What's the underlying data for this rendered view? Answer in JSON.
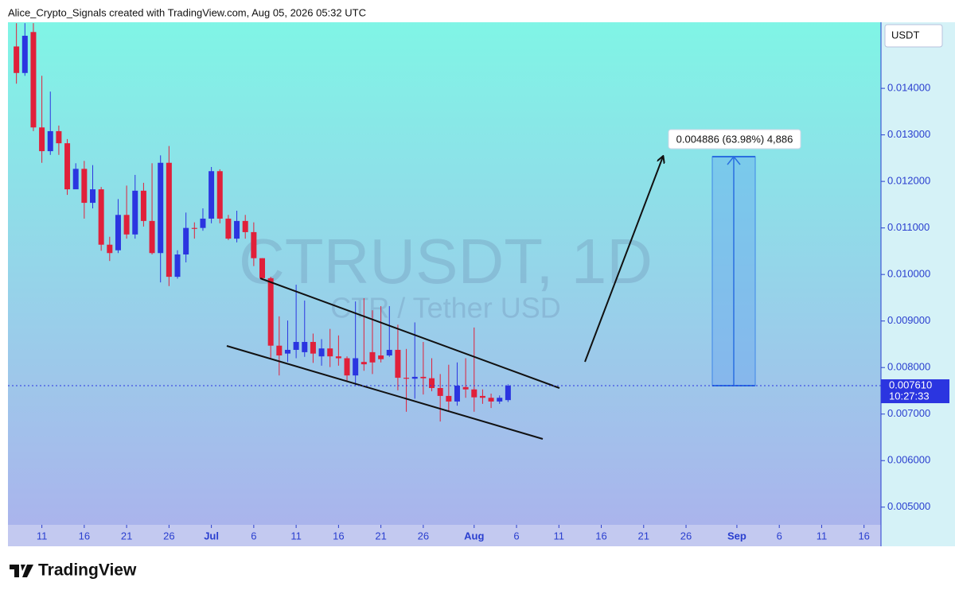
{
  "header": "Alice_Crypto_Signals created with TradingView.com, Aug 05, 2026 05:32 UTC",
  "footer": "TradingView",
  "chart_data": {
    "type": "candlestick",
    "title": "CTRUSDT, 1D",
    "subtitle": "CTR / Tether USD",
    "currency": "USDT",
    "up_color": "#2b35e0",
    "down_color": "#e0203a",
    "x": [
      "2026-06-08",
      "2026-06-09",
      "2026-06-10",
      "2026-06-11",
      "2026-06-12",
      "2026-06-13",
      "2026-06-14",
      "2026-06-15",
      "2026-06-16",
      "2026-06-17",
      "2026-06-18",
      "2026-06-19",
      "2026-06-20",
      "2026-06-21",
      "2026-06-22",
      "2026-06-23",
      "2026-06-24",
      "2026-06-25",
      "2026-06-26",
      "2026-06-27",
      "2026-06-28",
      "2026-06-29",
      "2026-06-30",
      "2026-07-01",
      "2026-07-02",
      "2026-07-03",
      "2026-07-04",
      "2026-07-05",
      "2026-07-06",
      "2026-07-07",
      "2026-07-08",
      "2026-07-09",
      "2026-07-10",
      "2026-07-11",
      "2026-07-12",
      "2026-07-13",
      "2026-07-14",
      "2026-07-15",
      "2026-07-16",
      "2026-07-17",
      "2026-07-18",
      "2026-07-19",
      "2026-07-20",
      "2026-07-21",
      "2026-07-22",
      "2026-07-23",
      "2026-07-24",
      "2026-07-25",
      "2026-07-26",
      "2026-07-27",
      "2026-07-28",
      "2026-07-29",
      "2026-07-30",
      "2026-07-31",
      "2026-08-01",
      "2026-08-02",
      "2026-08-03",
      "2026-08-04",
      "2026-08-05"
    ],
    "open": [
      0.0149,
      0.01433,
      0.01521,
      0.01316,
      0.01265,
      0.01308,
      0.01282,
      0.01183,
      0.01227,
      0.01154,
      0.01183,
      0.01064,
      0.01052,
      0.01128,
      0.01086,
      0.0118,
      0.01115,
      0.01046,
      0.0124,
      0.00995,
      0.01043,
      0.011,
      0.011,
      0.0112,
      0.01222,
      0.0112,
      0.01077,
      0.01115,
      0.01091,
      0.01035,
      0.00992,
      0.00847,
      0.0083,
      0.00838,
      0.00833,
      0.00855,
      0.00824,
      0.00841,
      0.00824,
      0.0082,
      0.00783,
      0.00812,
      0.00833,
      0.00826,
      0.00826,
      0.00838,
      0.00778,
      0.00776,
      0.0078,
      0.00777,
      0.00756,
      0.00739,
      0.00727,
      0.00758,
      0.00753,
      0.00739,
      0.00735,
      0.00727,
      0.0073
    ],
    "high": [
      0.0154,
      0.0154,
      0.0154,
      0.01427,
      0.01393,
      0.0132,
      0.01291,
      0.01239,
      0.01244,
      0.01235,
      0.01188,
      0.01081,
      0.01162,
      0.01191,
      0.01214,
      0.01197,
      0.01239,
      0.01256,
      0.01276,
      0.01052,
      0.01133,
      0.01112,
      0.01142,
      0.01231,
      0.01226,
      0.01128,
      0.01137,
      0.01128,
      0.01112,
      0.01035,
      0.00995,
      0.0091,
      0.00901,
      0.00978,
      0.00944,
      0.00873,
      0.00861,
      0.00883,
      0.00869,
      0.00824,
      0.00942,
      0.00949,
      0.00923,
      0.00932,
      0.00932,
      0.00892,
      0.0084,
      0.00897,
      0.00855,
      0.0082,
      0.00786,
      0.00806,
      0.00811,
      0.0082,
      0.00886,
      0.00753,
      0.00744,
      0.0074,
      0.00764
    ],
    "low": [
      0.0141,
      0.01427,
      0.01308,
      0.0124,
      0.01257,
      0.01257,
      0.01171,
      0.01186,
      0.0112,
      0.01142,
      0.01051,
      0.01029,
      0.01046,
      0.01077,
      0.01077,
      0.01103,
      0.01043,
      0.00983,
      0.00975,
      0.00991,
      0.01026,
      0.01077,
      0.01094,
      0.0111,
      0.0111,
      0.01074,
      0.01069,
      0.01077,
      0.01018,
      0.00988,
      0.00821,
      0.00783,
      0.00812,
      0.0082,
      0.00823,
      0.0081,
      0.00804,
      0.00801,
      0.00804,
      0.00769,
      0.0076,
      0.00793,
      0.00786,
      0.00811,
      0.00823,
      0.00751,
      0.00705,
      0.00733,
      0.00742,
      0.00749,
      0.00684,
      0.00705,
      0.00718,
      0.00735,
      0.00705,
      0.00722,
      0.00713,
      0.00722,
      0.00726
    ],
    "close": [
      0.01433,
      0.01513,
      0.01316,
      0.01265,
      0.01308,
      0.01282,
      0.01183,
      0.01227,
      0.01154,
      0.01183,
      0.01064,
      0.01046,
      0.01128,
      0.01086,
      0.0118,
      0.01115,
      0.01046,
      0.0124,
      0.00995,
      0.01043,
      0.011,
      0.01098,
      0.0112,
      0.01222,
      0.0112,
      0.01077,
      0.01115,
      0.01091,
      0.01035,
      0.00992,
      0.00847,
      0.00826,
      0.00838,
      0.00855,
      0.00855,
      0.0083,
      0.00841,
      0.00824,
      0.0082,
      0.00783,
      0.0082,
      0.00807,
      0.00811,
      0.00818,
      0.00838,
      0.00778,
      0.00776,
      0.0078,
      0.00777,
      0.00756,
      0.00739,
      0.00727,
      0.00761,
      0.00753,
      0.00736,
      0.00735,
      0.00727,
      0.00735,
      0.00761
    ],
    "xlim": [
      "2026-06-07",
      "2026-09-18"
    ],
    "xticks": [
      {
        "value": "2026-06-11",
        "label": "11"
      },
      {
        "value": "2026-06-16",
        "label": "16"
      },
      {
        "value": "2026-06-21",
        "label": "21"
      },
      {
        "value": "2026-06-26",
        "label": "26"
      },
      {
        "value": "2026-07-01",
        "label": "Jul"
      },
      {
        "value": "2026-07-06",
        "label": "6"
      },
      {
        "value": "2026-07-11",
        "label": "11"
      },
      {
        "value": "2026-07-16",
        "label": "16"
      },
      {
        "value": "2026-07-21",
        "label": "21"
      },
      {
        "value": "2026-07-26",
        "label": "26"
      },
      {
        "value": "2026-08-01",
        "label": "Aug"
      },
      {
        "value": "2026-08-06",
        "label": "6"
      },
      {
        "value": "2026-08-11",
        "label": "11"
      },
      {
        "value": "2026-08-16",
        "label": "16"
      },
      {
        "value": "2026-08-21",
        "label": "21"
      },
      {
        "value": "2026-08-26",
        "label": "26"
      },
      {
        "value": "2026-09-01",
        "label": "Sep"
      },
      {
        "value": "2026-09-06",
        "label": "6"
      },
      {
        "value": "2026-09-11",
        "label": "11"
      },
      {
        "value": "2026-09-16",
        "label": "16"
      }
    ],
    "ylim": [
      0.00462,
      0.01542
    ],
    "yticks": [
      {
        "value": 0.005,
        "label": "0.005000"
      },
      {
        "value": 0.006,
        "label": "0.006000"
      },
      {
        "value": 0.007,
        "label": "0.007000"
      },
      {
        "value": 0.008,
        "label": "0.008000"
      },
      {
        "value": 0.009,
        "label": "0.009000"
      },
      {
        "value": 0.01,
        "label": "0.010000"
      },
      {
        "value": 0.011,
        "label": "0.011000"
      },
      {
        "value": 0.012,
        "label": "0.012000"
      },
      {
        "value": 0.013,
        "label": "0.013000"
      },
      {
        "value": 0.014,
        "label": "0.014000"
      }
    ],
    "last_price": {
      "value": 0.00761,
      "label": "0.007610"
    },
    "countdown": "10:27:33",
    "annotation": "0.004886 (63.98%) 4,886"
  }
}
